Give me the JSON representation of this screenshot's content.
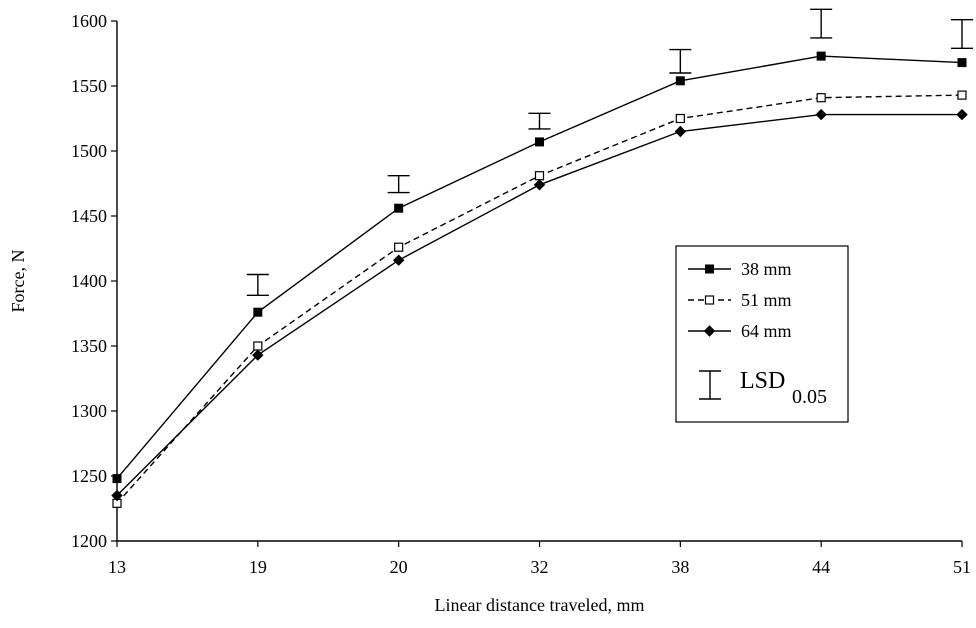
{
  "chart_data": {
    "type": "line",
    "title": "",
    "xlabel": "Linear distance traveled, mm",
    "ylabel": "Force, N",
    "categories": [
      "13",
      "19",
      "20",
      "32",
      "38",
      "44",
      "51"
    ],
    "ylim": [
      1200,
      1600
    ],
    "yticks": [
      "1200",
      "1250",
      "1300",
      "1350",
      "1400",
      "1450",
      "1500",
      "1550",
      "1600"
    ],
    "grid": false,
    "legend_position": "right",
    "series": [
      {
        "name": "38 mm",
        "marker": "filled-square",
        "line_style": "solid",
        "values": [
          1248,
          1376,
          1456,
          1507,
          1554,
          1573,
          1568
        ]
      },
      {
        "name": "51 mm",
        "marker": "open-square",
        "line_style": "dashed",
        "values": [
          1229,
          1350,
          1426,
          1481,
          1525,
          1541,
          1543
        ]
      },
      {
        "name": "64 mm",
        "marker": "filled-diamond",
        "line_style": "solid",
        "values": [
          1235,
          1343,
          1416,
          1474,
          1515,
          1528,
          1528
        ]
      }
    ],
    "lsd": {
      "legend_label": "LSD",
      "legend_subscript": "0.05",
      "intervals": [
        {
          "category": "19",
          "low": 1389,
          "high": 1405
        },
        {
          "category": "20",
          "low": 1468,
          "high": 1481
        },
        {
          "category": "32",
          "low": 1517,
          "high": 1529
        },
        {
          "category": "38",
          "low": 1560,
          "high": 1578
        },
        {
          "category": "44",
          "low": 1587,
          "high": 1609
        },
        {
          "category": "51",
          "low": 1579,
          "high": 1601
        }
      ]
    }
  }
}
